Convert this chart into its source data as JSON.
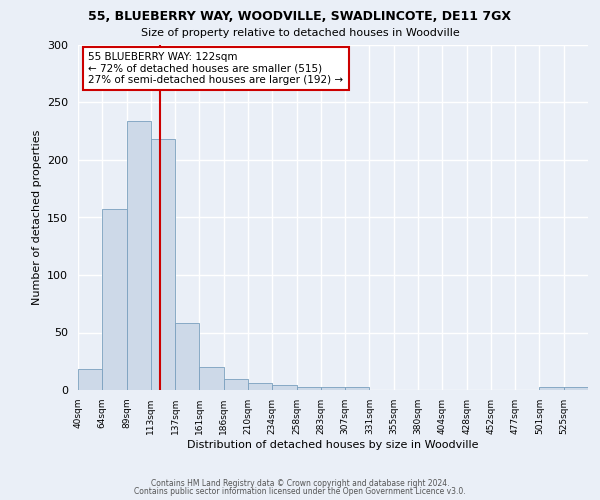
{
  "title": "55, BLUEBERRY WAY, WOODVILLE, SWADLINCOTE, DE11 7GX",
  "subtitle": "Size of property relative to detached houses in Woodville",
  "xlabel": "Distribution of detached houses by size in Woodville",
  "ylabel": "Number of detached properties",
  "bar_color": "#cdd9e8",
  "bar_edge_color": "#7aa0be",
  "bin_labels": [
    "40sqm",
    "64sqm",
    "89sqm",
    "113sqm",
    "137sqm",
    "161sqm",
    "186sqm",
    "210sqm",
    "234sqm",
    "258sqm",
    "283sqm",
    "307sqm",
    "331sqm",
    "355sqm",
    "380sqm",
    "404sqm",
    "428sqm",
    "452sqm",
    "477sqm",
    "501sqm",
    "525sqm"
  ],
  "bar_heights": [
    18,
    157,
    234,
    218,
    58,
    20,
    10,
    6,
    4,
    3,
    3,
    3,
    0,
    0,
    0,
    0,
    0,
    0,
    0,
    3,
    3
  ],
  "property_size_index": 3.45,
  "vline_color": "#cc0000",
  "annotation_text": "55 BLUEBERRY WAY: 122sqm\n← 72% of detached houses are smaller (515)\n27% of semi-detached houses are larger (192) →",
  "annotation_box_color": "#ffffff",
  "annotation_box_edge_color": "#cc0000",
  "ylim": [
    0,
    300
  ],
  "yticks": [
    0,
    50,
    100,
    150,
    200,
    250,
    300
  ],
  "background_color": "#eaeff7",
  "grid_color": "#ffffff",
  "footer_line1": "Contains HM Land Registry data © Crown copyright and database right 2024.",
  "footer_line2": "Contains public sector information licensed under the Open Government Licence v3.0."
}
